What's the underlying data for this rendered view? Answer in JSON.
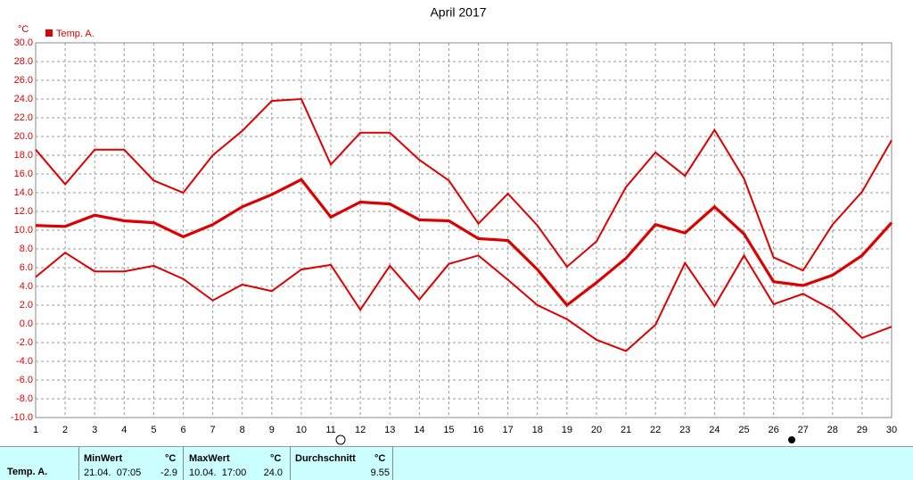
{
  "chart_data": {
    "type": "line",
    "title": "April 2017",
    "y_unit": "°C",
    "legend": "Temp. A.",
    "x": [
      1,
      2,
      3,
      4,
      5,
      6,
      7,
      8,
      9,
      10,
      11,
      12,
      13,
      14,
      15,
      16,
      17,
      18,
      19,
      20,
      21,
      22,
      23,
      24,
      25,
      26,
      27,
      28,
      29,
      30
    ],
    "xlim": [
      1,
      30
    ],
    "ylim": [
      -10,
      30
    ],
    "yticks": [
      {
        "value": -10,
        "label": "-10.0"
      },
      {
        "value": -8,
        "label": "-8.0"
      },
      {
        "value": -6,
        "label": "-6.0"
      },
      {
        "value": -4,
        "label": "-4.0"
      },
      {
        "value": -2,
        "label": "-2.0"
      },
      {
        "value": 0,
        "label": "0.0"
      },
      {
        "value": 2,
        "label": "2.0"
      },
      {
        "value": 4,
        "label": "4.0"
      },
      {
        "value": 6,
        "label": "6.0"
      },
      {
        "value": 8,
        "label": "8.0"
      },
      {
        "value": 10,
        "label": "10.0"
      },
      {
        "value": 12,
        "label": "12.0"
      },
      {
        "value": 14,
        "label": "14.0"
      },
      {
        "value": 16,
        "label": "16.0"
      },
      {
        "value": 18,
        "label": "18.0"
      },
      {
        "value": 20,
        "label": "20.0"
      },
      {
        "value": 22,
        "label": "22.0"
      },
      {
        "value": 24,
        "label": "24.0"
      },
      {
        "value": 26,
        "label": "26.0"
      },
      {
        "value": 28,
        "label": "28.0"
      },
      {
        "value": 30,
        "label": "30.0"
      }
    ],
    "grid": true,
    "series": [
      {
        "color": "#dd0000",
        "width": 2,
        "values": [
          18.6,
          14.9,
          18.6,
          18.6,
          15.3,
          14.0,
          18.0,
          20.6,
          23.8,
          24.0,
          17.0,
          20.4,
          20.4,
          17.5,
          15.3,
          10.7,
          13.9,
          10.5,
          6.1,
          8.8,
          14.6,
          18.3,
          15.8,
          20.7,
          15.5,
          7.1,
          5.7,
          10.6,
          14.1,
          19.6
        ]
      },
      {
        "color": "#dd0000",
        "width": 3.2,
        "values": [
          10.5,
          10.4,
          11.6,
          11.0,
          10.8,
          9.3,
          10.6,
          12.5,
          13.8,
          15.4,
          11.4,
          13.0,
          12.8,
          11.1,
          11.0,
          9.1,
          8.9,
          5.8,
          2.0,
          4.4,
          7.0,
          10.6,
          9.7,
          12.5,
          9.6,
          4.5,
          4.1,
          5.2,
          7.3,
          10.8
        ]
      },
      {
        "color": "#dd0000",
        "width": 2,
        "values": [
          5.0,
          7.6,
          5.6,
          5.6,
          6.2,
          4.8,
          2.5,
          4.2,
          3.5,
          5.8,
          6.3,
          1.5,
          6.2,
          2.6,
          6.4,
          7.3,
          4.7,
          2.0,
          0.5,
          -1.7,
          -2.9,
          -0.1,
          6.5,
          1.9,
          7.3,
          2.1,
          3.2,
          1.5,
          -1.5,
          -0.3
        ]
      }
    ]
  },
  "summary": {
    "row_label": "Temp. A.",
    "columns": [
      {
        "title": "MinWert",
        "unit": "°C",
        "time": "21.04.  07:05",
        "value": "-2.9"
      },
      {
        "title": "MaxWert",
        "unit": "°C",
        "time": "10.04.  17:00",
        "value": "24.0"
      },
      {
        "title": "Durchschnitt",
        "unit": "°C",
        "value": "9.55"
      }
    ]
  }
}
